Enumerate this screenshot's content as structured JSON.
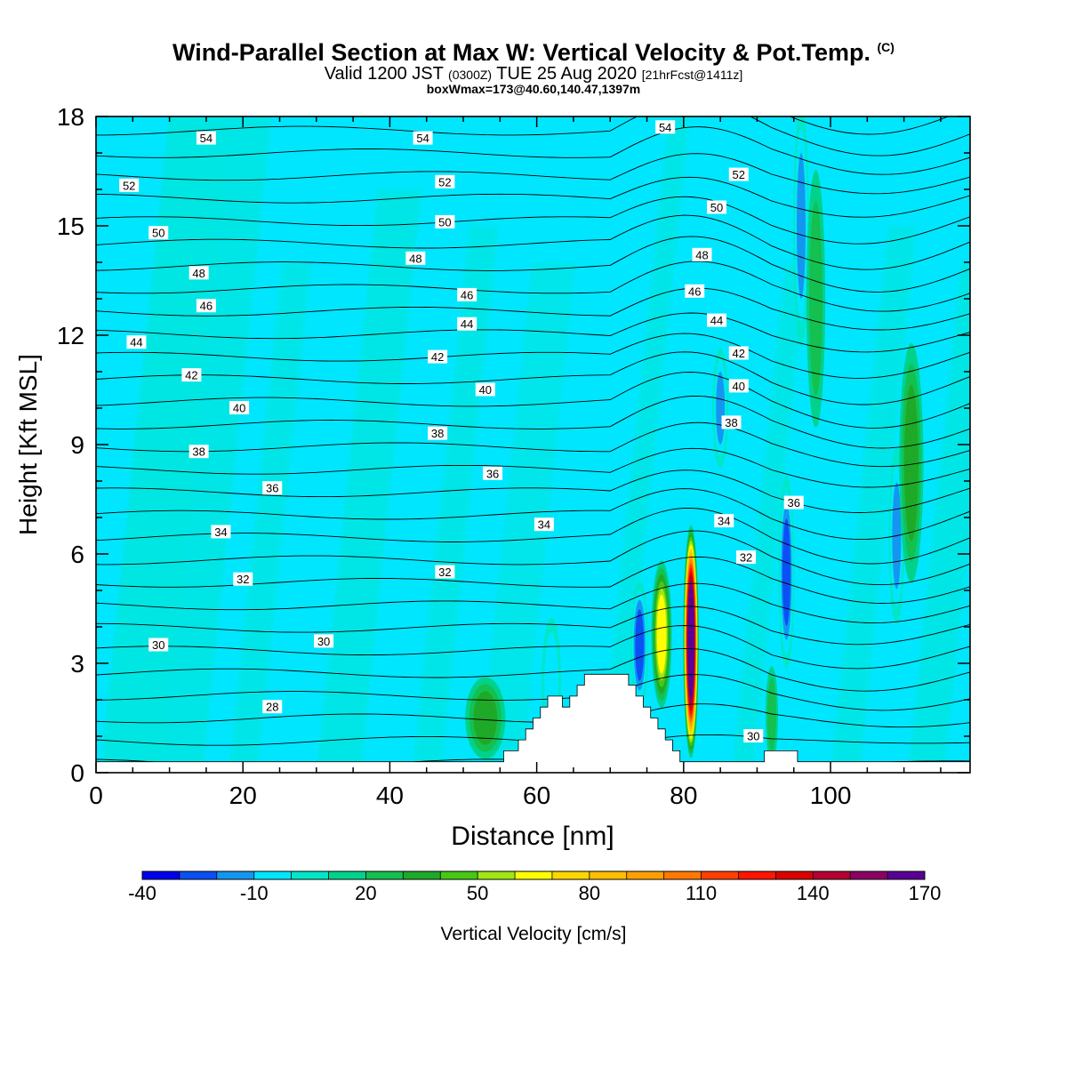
{
  "header": {
    "title": "Wind-Parallel Section at Max W: Vertical Velocity & Pot.Temp.",
    "title_mark": "(C)",
    "valid_prefix": "Valid 1200 JST",
    "valid_zulu": "(0300Z)",
    "valid_date": "TUE 25 Aug 2020",
    "forecast": "[21hrFcst@1411z]",
    "box_info": "boxWmax=173@40.60,140.47,1397m"
  },
  "chart_data": {
    "type": "heatmap",
    "xlabel": "Distance [nm]",
    "ylabel": "Height [Kft MSL]",
    "xlim": [
      0,
      119
    ],
    "ylim": [
      0,
      18
    ],
    "x_ticks": [
      0,
      20,
      40,
      60,
      80,
      100
    ],
    "y_ticks": [
      0,
      3,
      6,
      9,
      12,
      15,
      18
    ],
    "colorbar": {
      "label": "Vertical Velocity [cm/s]",
      "ticks": [
        -40,
        -10,
        20,
        50,
        80,
        110,
        140,
        170
      ],
      "bins": [
        -40,
        -30,
        -20,
        -10,
        0,
        10,
        20,
        30,
        40,
        50,
        60,
        70,
        80,
        90,
        100,
        110,
        120,
        130,
        140,
        150,
        160,
        170
      ],
      "colors": [
        "#0000ee",
        "#0a50f5",
        "#1496f0",
        "#00e6ff",
        "#00e6c8",
        "#00d28c",
        "#14c050",
        "#1eaa28",
        "#46c814",
        "#a0e614",
        "#ffff00",
        "#ffd700",
        "#ffbe00",
        "#ffa000",
        "#ff7800",
        "#ff4000",
        "#ff1400",
        "#dc0000",
        "#b40032",
        "#8c0064",
        "#5a0096"
      ]
    },
    "terrain_profile": [
      [
        0,
        0.3
      ],
      [
        55.5,
        0.3
      ],
      [
        55.5,
        0.6
      ],
      [
        57.5,
        0.6
      ],
      [
        57.5,
        0.9
      ],
      [
        58.5,
        0.9
      ],
      [
        58.5,
        1.2
      ],
      [
        59.5,
        1.2
      ],
      [
        59.5,
        1.5
      ],
      [
        60.5,
        1.5
      ],
      [
        60.5,
        1.8
      ],
      [
        61.5,
        1.8
      ],
      [
        61.5,
        2.1
      ],
      [
        63.5,
        2.1
      ],
      [
        63.5,
        1.8
      ],
      [
        64.5,
        1.8
      ],
      [
        64.5,
        2.1
      ],
      [
        65.5,
        2.1
      ],
      [
        65.5,
        2.4
      ],
      [
        66.5,
        2.4
      ],
      [
        66.5,
        2.7
      ],
      [
        72.5,
        2.7
      ],
      [
        72.5,
        2.4
      ],
      [
        73.5,
        2.4
      ],
      [
        73.5,
        2.1
      ],
      [
        74.5,
        2.1
      ],
      [
        74.5,
        1.8
      ],
      [
        75.5,
        1.8
      ],
      [
        75.5,
        1.5
      ],
      [
        76.5,
        1.5
      ],
      [
        76.5,
        1.2
      ],
      [
        77.5,
        1.2
      ],
      [
        77.5,
        0.9
      ],
      [
        78.5,
        0.9
      ],
      [
        78.5,
        0.6
      ],
      [
        79.5,
        0.6
      ],
      [
        79.5,
        0.3
      ],
      [
        91,
        0.3
      ],
      [
        91,
        0.6
      ],
      [
        95.5,
        0.6
      ],
      [
        95.5,
        0.3
      ],
      [
        119,
        0.3
      ]
    ],
    "w_features": [
      {
        "x": 81,
        "y": 3.6,
        "rx": 1.0,
        "ry": 3.0,
        "value": 173
      },
      {
        "x": 77,
        "y": 3.8,
        "rx": 1.4,
        "ry": 2.0,
        "value": 60
      },
      {
        "x": 74,
        "y": 3.5,
        "rx": 1.1,
        "ry": 1.6,
        "value": -30
      },
      {
        "x": 62,
        "y": 2.5,
        "rx": 1.2,
        "ry": 1.6,
        "value": -15
      },
      {
        "x": 53,
        "y": 1.5,
        "rx": 3.0,
        "ry": 1.2,
        "value": 30
      },
      {
        "x": 94,
        "y": 5.5,
        "rx": 1.0,
        "ry": 2.4,
        "value": -30
      },
      {
        "x": 109,
        "y": 6.5,
        "rx": 1.0,
        "ry": 2.2,
        "value": -20
      },
      {
        "x": 111,
        "y": 8.5,
        "rx": 1.8,
        "ry": 3.5,
        "value": 30
      },
      {
        "x": 96,
        "y": 15.0,
        "rx": 1.0,
        "ry": 3.0,
        "value": -20
      },
      {
        "x": 98,
        "y": 13.0,
        "rx": 1.5,
        "ry": 4.0,
        "value": 20
      },
      {
        "x": 85,
        "y": 10.0,
        "rx": 1.0,
        "ry": 1.5,
        "value": -20
      },
      {
        "x": 92,
        "y": 1.6,
        "rx": 1.0,
        "ry": 1.5,
        "value": 20
      }
    ],
    "theta_labels": [
      {
        "value": "54",
        "x": 15,
        "y": 17.4
      },
      {
        "value": "54",
        "x": 44.5,
        "y": 17.4
      },
      {
        "value": "54",
        "x": 77.5,
        "y": 17.7
      },
      {
        "value": "52",
        "x": 4.5,
        "y": 16.1
      },
      {
        "value": "52",
        "x": 47.5,
        "y": 16.2
      },
      {
        "value": "52",
        "x": 87.5,
        "y": 16.4
      },
      {
        "value": "50",
        "x": 8.5,
        "y": 14.8
      },
      {
        "value": "50",
        "x": 47.5,
        "y": 15.1
      },
      {
        "value": "50",
        "x": 84.5,
        "y": 15.5
      },
      {
        "value": "48",
        "x": 14,
        "y": 13.7
      },
      {
        "value": "48",
        "x": 43.5,
        "y": 14.1
      },
      {
        "value": "48",
        "x": 82.5,
        "y": 14.2
      },
      {
        "value": "46",
        "x": 15,
        "y": 12.8
      },
      {
        "value": "46",
        "x": 50.5,
        "y": 13.1
      },
      {
        "value": "46",
        "x": 81.5,
        "y": 13.2
      },
      {
        "value": "44",
        "x": 5.5,
        "y": 11.8
      },
      {
        "value": "44",
        "x": 50.5,
        "y": 12.3
      },
      {
        "value": "44",
        "x": 84.5,
        "y": 12.4
      },
      {
        "value": "42",
        "x": 13,
        "y": 10.9
      },
      {
        "value": "42",
        "x": 46.5,
        "y": 11.4
      },
      {
        "value": "42",
        "x": 87.5,
        "y": 11.5
      },
      {
        "value": "40",
        "x": 19.5,
        "y": 10.0
      },
      {
        "value": "40",
        "x": 53,
        "y": 10.5
      },
      {
        "value": "40",
        "x": 87.5,
        "y": 10.6
      },
      {
        "value": "38",
        "x": 14,
        "y": 8.8
      },
      {
        "value": "38",
        "x": 46.5,
        "y": 9.3
      },
      {
        "value": "38",
        "x": 86.5,
        "y": 9.6
      },
      {
        "value": "36",
        "x": 24,
        "y": 7.8
      },
      {
        "value": "36",
        "x": 54,
        "y": 8.2
      },
      {
        "value": "36",
        "x": 95,
        "y": 7.4
      },
      {
        "value": "34",
        "x": 17,
        "y": 6.6
      },
      {
        "value": "34",
        "x": 61,
        "y": 6.8
      },
      {
        "value": "34",
        "x": 85.5,
        "y": 6.9
      },
      {
        "value": "32",
        "x": 20,
        "y": 5.3
      },
      {
        "value": "32",
        "x": 47.5,
        "y": 5.5
      },
      {
        "value": "32",
        "x": 88.5,
        "y": 5.9
      },
      {
        "value": "30",
        "x": 8.5,
        "y": 3.5
      },
      {
        "value": "30",
        "x": 31,
        "y": 3.6
      },
      {
        "value": "30",
        "x": 89.5,
        "y": 1.0
      },
      {
        "value": "28",
        "x": 24,
        "y": 1.8
      }
    ]
  }
}
